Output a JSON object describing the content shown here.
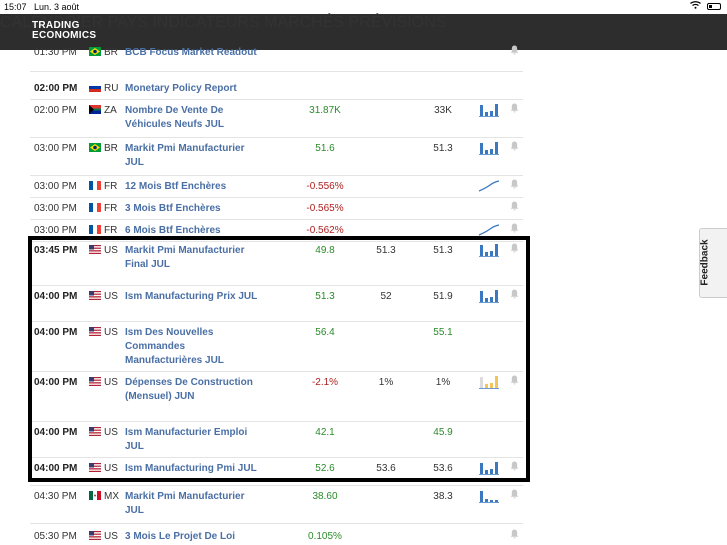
{
  "status_bar": {
    "time": "15:07",
    "date": "Lun. 3 août"
  },
  "brand": {
    "line1": "TRADING",
    "line2": "ECONOMICS"
  },
  "nav": [
    {
      "id": "calendar",
      "label": "CALENDRIER"
    },
    {
      "id": "countries",
      "label": "PAYS"
    },
    {
      "id": "indicators",
      "label": "INDICATEURS"
    },
    {
      "id": "markets",
      "label": "MARCHÉS"
    },
    {
      "id": "forecasts",
      "label": "PRÉVISIONS"
    }
  ],
  "rows": [
    {
      "time": "01:30 PM",
      "country": "BR",
      "flag": "br",
      "event": "BCB Focus Market Readout",
      "actual": "",
      "actual_sign": "plain",
      "previous": "",
      "consensus": "",
      "consensus_sign": "plain",
      "chart": "none",
      "bell": true,
      "bold_time": false
    },
    {
      "time": "02:00 PM",
      "country": "RU",
      "flag": "ru",
      "event": "Monetary Policy Report",
      "actual": "",
      "actual_sign": "plain",
      "previous": "",
      "consensus": "",
      "consensus_sign": "plain",
      "chart": "none",
      "bell": false,
      "bold_time": true
    },
    {
      "time": "02:00 PM",
      "country": "ZA",
      "flag": "za",
      "event": "Nombre De Vente De Véhicules Neufs JUL",
      "actual": "31.87K",
      "actual_sign": "pos",
      "previous": "",
      "consensus": "33K",
      "consensus_sign": "plain",
      "chart": "bars",
      "bell": true,
      "bold_time": false
    },
    {
      "time": "03:00 PM",
      "country": "BR",
      "flag": "br",
      "event": "Markit Pmi Manufacturier JUL",
      "actual": "51.6",
      "actual_sign": "pos",
      "previous": "",
      "consensus": "51.3",
      "consensus_sign": "plain",
      "chart": "bars",
      "bell": true,
      "bold_time": false
    },
    {
      "time": "03:00 PM",
      "country": "FR",
      "flag": "fr",
      "event": "12 Mois Btf Enchères",
      "actual": "-0.556%",
      "actual_sign": "neg",
      "previous": "",
      "consensus": "",
      "consensus_sign": "plain",
      "chart": "line",
      "bell": true,
      "bold_time": false
    },
    {
      "time": "03:00 PM",
      "country": "FR",
      "flag": "fr",
      "event": "3 Mois Btf Enchères",
      "actual": "-0.565%",
      "actual_sign": "neg",
      "previous": "",
      "consensus": "",
      "consensus_sign": "plain",
      "chart": "none",
      "bell": true,
      "bold_time": false
    },
    {
      "time": "03:00 PM",
      "country": "FR",
      "flag": "fr",
      "event": "6 Mois Btf Enchères",
      "actual": "-0.562%",
      "actual_sign": "neg",
      "previous": "",
      "consensus": "",
      "consensus_sign": "plain",
      "chart": "line",
      "bell": true,
      "bold_time": false
    },
    {
      "time": "03:45 PM",
      "country": "US",
      "flag": "us",
      "event": "Markit Pmi Manufacturier Final JUL",
      "actual": "49.8",
      "actual_sign": "pos",
      "previous": "51.3",
      "consensus": "51.3",
      "consensus_sign": "plain",
      "chart": "bars",
      "bell": true,
      "bold_time": true
    },
    {
      "time": "04:00 PM",
      "country": "US",
      "flag": "us",
      "event": "Ism Manufacturing Prix JUL",
      "actual": "51.3",
      "actual_sign": "pos",
      "previous": "52",
      "consensus": "51.9",
      "consensus_sign": "plain",
      "chart": "bars",
      "bell": true,
      "bold_time": true
    },
    {
      "time": "04:00 PM",
      "country": "US",
      "flag": "us",
      "event": "Ism Des Nouvelles Commandes Manufacturières JUL",
      "actual": "56.4",
      "actual_sign": "pos",
      "previous": "",
      "consensus": "55.1",
      "consensus_sign": "pos",
      "chart": "none",
      "bell": false,
      "bold_time": true
    },
    {
      "time": "04:00 PM",
      "country": "US",
      "flag": "us",
      "event": "Dépenses De Construction (Mensuel) JUN",
      "actual": "-2.1%",
      "actual_sign": "neg",
      "previous": "1%",
      "consensus": "1%",
      "consensus_sign": "plain",
      "chart": "bars-yellow",
      "bell": true,
      "bold_time": true
    },
    {
      "time": "04:00 PM",
      "country": "US",
      "flag": "us",
      "event": "Ism Manufacturier Emploi JUL",
      "actual": "42.1",
      "actual_sign": "pos",
      "previous": "",
      "consensus": "45.9",
      "consensus_sign": "pos",
      "chart": "none",
      "bell": false,
      "bold_time": true
    },
    {
      "time": "04:00 PM",
      "country": "US",
      "flag": "us",
      "event": "Ism Manufacturing Pmi JUL",
      "actual": "52.6",
      "actual_sign": "pos",
      "previous": "53.6",
      "consensus": "53.6",
      "consensus_sign": "plain",
      "chart": "bars",
      "bell": true,
      "bold_time": true
    },
    {
      "time": "04:30 PM",
      "country": "MX",
      "flag": "mx",
      "event": "Markit Pmi Manufacturier JUL",
      "actual": "38.60",
      "actual_sign": "pos",
      "previous": "",
      "consensus": "38.3",
      "consensus_sign": "plain",
      "chart": "bars-low",
      "bell": true,
      "bold_time": false
    },
    {
      "time": "05:30 PM",
      "country": "US",
      "flag": "us",
      "event": "3 Mois Le Projet De Loi",
      "actual": "0.105%",
      "actual_sign": "pos",
      "previous": "",
      "consensus": "",
      "consensus_sign": "plain",
      "chart": "none",
      "bell": true,
      "bold_time": false
    }
  ],
  "feedback": {
    "label": "Feedback"
  },
  "colors": {
    "nav_bg": "#2d2d2d",
    "event_link": "#4a6fa5",
    "positive": "#2a8a2a",
    "negative": "#b02020"
  }
}
